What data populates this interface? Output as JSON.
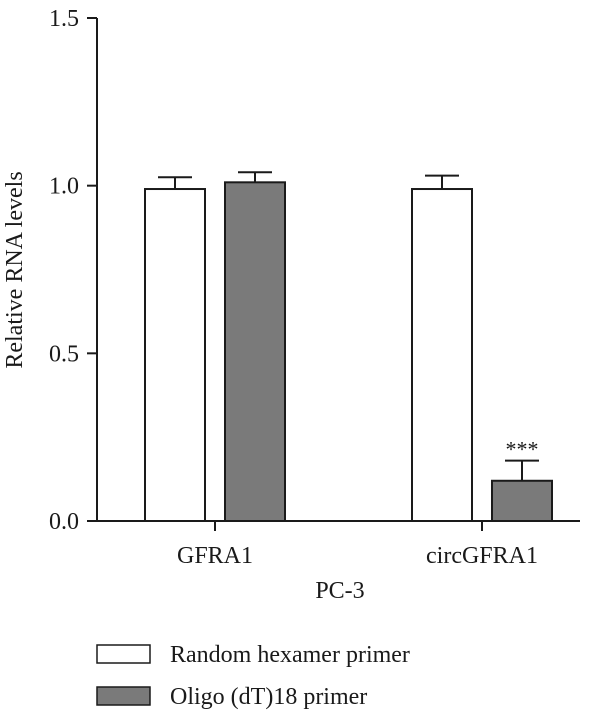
{
  "chart_data": {
    "type": "bar",
    "ylabel": "Relative RNA levels",
    "xlabel": "PC-3",
    "categories": [
      "GFRA1",
      "circGFRA1"
    ],
    "ylim": [
      0,
      1.5
    ],
    "yticks": [
      0.0,
      0.5,
      1.0,
      1.5
    ],
    "ytick_labels": [
      "0.0",
      "0.5",
      "1.0",
      "1.5"
    ],
    "series": [
      {
        "name": "Random hexamer primer",
        "values": [
          0.99,
          0.99
        ],
        "errors": [
          0.035,
          0.04
        ],
        "color": "#ffffff"
      },
      {
        "name": "Oligo (dT)18 primer",
        "values": [
          1.01,
          0.12
        ],
        "errors": [
          0.03,
          0.06
        ],
        "color": "#7a7a7a"
      }
    ],
    "annotations": [
      {
        "category": "circGFRA1",
        "series": "Oligo (dT)18 primer",
        "text": "***"
      }
    ],
    "grid": false,
    "legend": "bottom-left"
  }
}
